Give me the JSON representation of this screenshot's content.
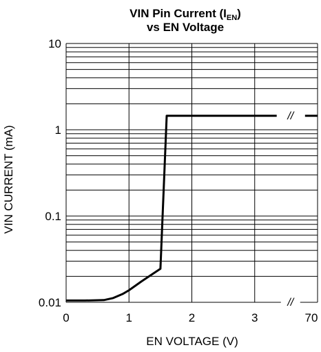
{
  "chart_data": {
    "type": "line",
    "title_line1_main": "VIN Pin Current (I",
    "title_line1_sub": "EN",
    "title_line1_end": ")",
    "title_line2": "vs EN Voltage",
    "xlabel": "EN VOLTAGE (V)",
    "ylabel": "VIN CURRENT (mA)",
    "y_scale": "log",
    "ylim": [
      0.01,
      10
    ],
    "xlim": [
      0,
      4
    ],
    "x_ticks": [
      "0",
      "1",
      "2",
      "3",
      "70"
    ],
    "y_ticks": [
      "0.01",
      "0.1",
      "1",
      "10"
    ],
    "axis_break_label": "//",
    "axis_break_note": "x axis is broken between 3 and 70",
    "grid": true,
    "series": [
      {
        "values": [
          {
            "x": 0,
            "y": 0.0105
          },
          {
            "x": 0.3,
            "y": 0.0105
          },
          {
            "x": 0.6,
            "y": 0.0106
          },
          {
            "x": 0.75,
            "y": 0.0112
          },
          {
            "x": 0.9,
            "y": 0.0125
          },
          {
            "x": 1.0,
            "y": 0.0138
          },
          {
            "x": 1.2,
            "y": 0.0175
          },
          {
            "x": 1.5,
            "y": 0.0245
          },
          {
            "x": 1.6,
            "y": 1.45
          },
          {
            "x": 3.35,
            "y": 1.45
          }
        ],
        "after_break": [
          {
            "x": 3.8,
            "y": 1.45
          },
          {
            "x": 4.0,
            "y": 1.45
          }
        ]
      }
    ]
  }
}
